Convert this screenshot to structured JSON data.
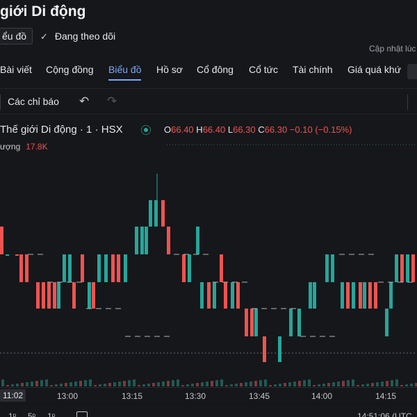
{
  "header": {
    "title": "giới Di động",
    "chart_chip": "ểu đồ",
    "follow_label": "Đang theo dõi",
    "updated_label": "Cập nhật lúc"
  },
  "tabs": [
    {
      "label": "Bài viết",
      "active": false
    },
    {
      "label": "Cộng đồng",
      "active": false
    },
    {
      "label": "Biểu đồ",
      "active": true
    },
    {
      "label": "Hồ sơ",
      "active": false
    },
    {
      "label": "Cổ đông",
      "active": false
    },
    {
      "label": "Cổ tức",
      "active": false
    },
    {
      "label": "Tài chính",
      "active": false
    },
    {
      "label": "Giá quá khứ",
      "active": false
    }
  ],
  "toolbar": {
    "indicators_label": "Các chỉ báo",
    "undo_icon": "undo-icon",
    "redo_icon": "redo-icon"
  },
  "legend": {
    "symbol": "Thế giới Di động · 1 · HSX",
    "o_label": "O",
    "o": "66.40",
    "h_label": "H",
    "h": "66.40",
    "l_label": "L",
    "l": "66.30",
    "c_label": "C",
    "c": "66.30",
    "change": "−0.10 (−0.15%)",
    "volume_label": "ượng",
    "volume": "17.8K"
  },
  "colors": {
    "up": "#26a69a",
    "down": "#ef5350",
    "accent": "#7aa8ff"
  },
  "xaxis": {
    "ticks": [
      "11:02",
      "13:00",
      "13:15",
      "13:30",
      "13:45",
      "14:00",
      "14:15"
    ]
  },
  "bottom": {
    "r1": "1ᵖ",
    "r2": "5ᵖ",
    "r3": "1ᵖ",
    "clock": "14:51:06 (UTC"
  },
  "chart_data": {
    "type": "candlestick",
    "price_levels": [
      66.4,
      66.3
    ],
    "candles": [
      {
        "o": 66.4,
        "c": 66.3,
        "dir": "down"
      }
    ]
  }
}
